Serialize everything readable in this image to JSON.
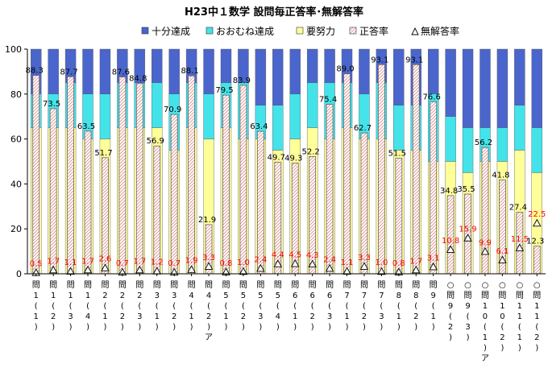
{
  "chart_data": {
    "type": "bar",
    "title": "H23中１数学 設問毎正答率･無解答率",
    "ylim": [
      0,
      100
    ],
    "yticks": [
      0,
      20,
      40,
      60,
      80,
      100
    ],
    "grid": false,
    "legend_position": "top",
    "legend": [
      "十分達成",
      "おおむね達成",
      "要努力",
      "正答率",
      "無解答率"
    ],
    "colors": {
      "sufficient": "#4a66cc",
      "mostly": "#44e3ea",
      "effort": "#ffff99",
      "correct_fill": "#ffffff",
      "correct_hatch": "#dd8888",
      "correct_border": "#666666",
      "no_answer_label": "#ff0000"
    },
    "categories": [
      "問1(1)",
      "問1(2)",
      "問1(3)",
      "問1(4)",
      "問2(1)",
      "問2(2)",
      "問2(3)",
      "問3(1)",
      "問3(2)",
      "問4(1)",
      "問4(2)ア",
      "問5(1)",
      "問5(2)",
      "問5(3)",
      "問5(4)",
      "問6(1)",
      "問6(2)",
      "問6(3)",
      "問7(1)",
      "問7(2)",
      "問7(3)",
      "問8(1)",
      "問8(2)",
      "問9(1)",
      "○問9(2)",
      "○問9(3)",
      "○問10(1)ア",
      "○問10(2)",
      "○問11(1)",
      "○問11(2)"
    ],
    "x_axis_labels": [
      [
        "問",
        "1",
        "(",
        "1",
        ")"
      ],
      [
        "問",
        "1",
        "(",
        "2",
        ")"
      ],
      [
        "問",
        "1",
        "(",
        "3",
        ")"
      ],
      [
        "問",
        "1",
        "(",
        "4",
        ")"
      ],
      [
        "問",
        "2",
        "(",
        "1",
        ")"
      ],
      [
        "問",
        "2",
        "(",
        "2",
        ")"
      ],
      [
        "問",
        "2",
        "(",
        "3",
        ")"
      ],
      [
        "問",
        "3",
        "(",
        "1",
        ")"
      ],
      [
        "問",
        "3",
        "(",
        "2",
        ")"
      ],
      [
        "問",
        "4",
        "(",
        "1",
        ")"
      ],
      [
        "問",
        "4",
        "(",
        "2",
        ")",
        "ア"
      ],
      [
        "問",
        "5",
        "(",
        "1",
        ")"
      ],
      [
        "問",
        "5",
        "(",
        "2",
        ")"
      ],
      [
        "問",
        "5",
        "(",
        "3",
        ")"
      ],
      [
        "問",
        "5",
        "(",
        "4",
        ")"
      ],
      [
        "問",
        "6",
        "(",
        "1",
        ")"
      ],
      [
        "問",
        "6",
        "(",
        "2",
        ")"
      ],
      [
        "問",
        "6",
        "(",
        "3",
        ")"
      ],
      [
        "問",
        "7",
        "(",
        "1",
        ")"
      ],
      [
        "問",
        "7",
        "(",
        "2",
        ")"
      ],
      [
        "問",
        "7",
        "(",
        "3",
        ")"
      ],
      [
        "問",
        "8",
        "(",
        "1",
        ")"
      ],
      [
        "問",
        "8",
        "(",
        "2",
        ")"
      ],
      [
        "問",
        "9",
        "(",
        "1",
        ")"
      ],
      [
        "○",
        "問",
        "9",
        "(",
        "2",
        ")"
      ],
      [
        "○",
        "問",
        "9",
        "(",
        "3",
        ")"
      ],
      [
        "○",
        "問",
        "1",
        "0",
        "(",
        "1",
        ")",
        "ア"
      ],
      [
        "○",
        "問",
        "1",
        "0",
        "(",
        "2",
        ")"
      ],
      [
        "○",
        "問",
        "1",
        "1",
        "(",
        "1",
        ")"
      ],
      [
        "○",
        "問",
        "1",
        "1",
        "(",
        "2",
        ")"
      ]
    ],
    "series": [
      {
        "name": "十分達成",
        "type": "stacked-bar",
        "values": [
          100,
          100,
          100,
          100,
          100,
          100,
          100,
          100,
          100,
          100,
          100,
          100,
          100,
          100,
          100,
          100,
          100,
          100,
          100,
          100,
          100,
          100,
          100,
          100,
          100,
          100,
          100,
          100,
          100,
          100
        ]
      },
      {
        "name": "おおむね達成",
        "type": "stacked-bar-boundary",
        "values": [
          80,
          80,
          85,
          80,
          80,
          85,
          85,
          85,
          80,
          85,
          80,
          85,
          85,
          75,
          75,
          80,
          85,
          85,
          85,
          80,
          85,
          75,
          75,
          80,
          70,
          65,
          65,
          65,
          75,
          65
        ]
      },
      {
        "name": "要努力",
        "type": "stacked-bar-boundary",
        "values": [
          65,
          65,
          65,
          60,
          60,
          65,
          65,
          65,
          55,
          65,
          60,
          65,
          60,
          60,
          55,
          60,
          65,
          60,
          65,
          60,
          60,
          55,
          55,
          50,
          50,
          45,
          50,
          50,
          55,
          45
        ]
      },
      {
        "name": "正答率",
        "type": "bar",
        "values": [
          88.3,
          73.5,
          87.7,
          63.5,
          51.7,
          87.6,
          84.8,
          56.9,
          70.9,
          88.1,
          21.9,
          79.5,
          83.9,
          63.4,
          49.7,
          49.3,
          52.2,
          75.4,
          89.0,
          62.7,
          93.1,
          51.5,
          93.1,
          76.6,
          34.8,
          35.5,
          56.2,
          41.8,
          27.4,
          12.3
        ]
      },
      {
        "name": "無解答率",
        "type": "marker-triangle",
        "values": [
          0.5,
          1.7,
          1.1,
          1.7,
          2.6,
          0.7,
          1.7,
          1.2,
          0.7,
          1.9,
          3.3,
          0.8,
          1.0,
          2.4,
          4.4,
          4.5,
          4.3,
          2.4,
          1.1,
          3.3,
          1.0,
          0.8,
          1.7,
          3.1,
          10.8,
          15.9,
          9.9,
          6.1,
          11.5,
          22.5
        ]
      }
    ],
    "correct_rate_labels": [
      "88.3",
      "73.5",
      "87.7",
      "63.5",
      "51.7",
      "87.6",
      "84.8",
      "56.9",
      "70.9",
      "88.1",
      "21.9",
      "79.5",
      "83.9",
      "63.4",
      "49.7",
      "49.3",
      "52.2",
      "75.4",
      "89.0",
      "62.7",
      "93.1",
      "51.5",
      "93.1",
      "76.6",
      "34.8",
      "35.5",
      "56.2",
      "41.8",
      "27.4",
      "12.3"
    ],
    "no_answer_labels": [
      "0.5",
      "1.7",
      "1.1",
      "1.7",
      "2.6",
      "0.7",
      "1.7",
      "1.2",
      "0.7",
      "1.9",
      "3.3",
      "0.8",
      "1.0",
      "2.4",
      "4.4",
      "4.5",
      "4.3",
      "2.4",
      "1.1",
      "3.3",
      "1.0",
      "0.8",
      "1.7",
      "3.1",
      "10.8",
      "15.9",
      "9.9",
      "6.1",
      "11.5",
      "22.5"
    ]
  }
}
